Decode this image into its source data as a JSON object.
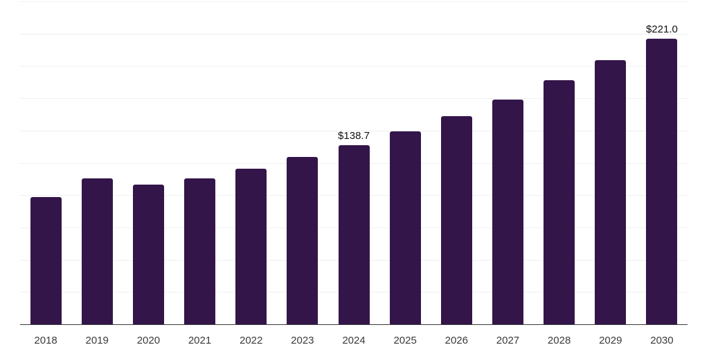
{
  "chart_data": {
    "type": "bar",
    "title": "",
    "xlabel": "",
    "ylabel": "",
    "categories": [
      "2018",
      "2019",
      "2020",
      "2021",
      "2022",
      "2023",
      "2024",
      "2025",
      "2026",
      "2027",
      "2028",
      "2029",
      "2030"
    ],
    "values": [
      98.6,
      112.7,
      107.9,
      113.2,
      120.4,
      129.3,
      138.7,
      149.6,
      161.2,
      174.2,
      189.0,
      204.7,
      221.0
    ],
    "point_labels": [
      "",
      "",
      "",
      "",
      "",
      "",
      "$138.7",
      "",
      "",
      "",
      "",
      "",
      "$221.0"
    ],
    "ylim": [
      0,
      250
    ],
    "grid_step": 25,
    "grid": true,
    "legend": false,
    "y_tick_labels_visible": false,
    "colors": {
      "bar": "#33154a",
      "gridline": "#f0f0f0",
      "axis_line": "#3a3a3a",
      "value_label": "#111111",
      "tick_label": "#3a3a3a",
      "background": "#ffffff"
    }
  }
}
